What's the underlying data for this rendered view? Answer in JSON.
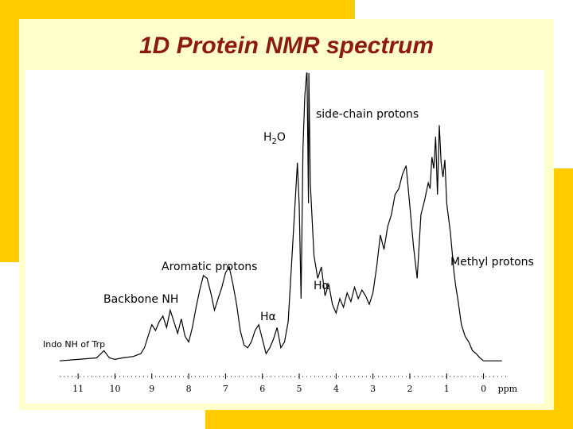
{
  "colors": {
    "background": "#ffffff",
    "accent_yellow": "#ffcc00",
    "slide_panel": "#ffffcc",
    "title": "#8b1a10",
    "spectrum": "#000000"
  },
  "slide": {
    "title": "1D Protein NMR spectrum"
  },
  "chart_data": {
    "type": "line",
    "title": "1D Protein NMR spectrum",
    "xlabel": "ppm",
    "ylabel": "",
    "x_reversed": true,
    "xlim": [
      11.5,
      -0.7
    ],
    "ylim": [
      0,
      100
    ],
    "x_ticks": [
      {
        "value": 11,
        "label": "11"
      },
      {
        "value": 10,
        "label": "10"
      },
      {
        "value": 9,
        "label": "9"
      },
      {
        "value": 8,
        "label": "8"
      },
      {
        "value": 7,
        "label": "7"
      },
      {
        "value": 6,
        "label": "6"
      },
      {
        "value": 5,
        "label": "5"
      },
      {
        "value": 4,
        "label": "4"
      },
      {
        "value": 3,
        "label": "3"
      },
      {
        "value": 2,
        "label": "2"
      },
      {
        "value": 1,
        "label": "1"
      },
      {
        "value": 0,
        "label": "0"
      }
    ],
    "series": [
      {
        "x": [
          11.5,
          11.0,
          10.5,
          10.3,
          10.15,
          10.0,
          9.8,
          9.5,
          9.3,
          9.2,
          9.1,
          9.0,
          8.9,
          8.8,
          8.7,
          8.6,
          8.5,
          8.4,
          8.3,
          8.2,
          8.1,
          8.0,
          7.9,
          7.8,
          7.7,
          7.6,
          7.5,
          7.4,
          7.3,
          7.2,
          7.1,
          7.0,
          6.9,
          6.8,
          6.7,
          6.6,
          6.5,
          6.4,
          6.3,
          6.2,
          6.1,
          6.0,
          5.9,
          5.8,
          5.7,
          5.6,
          5.5,
          5.4,
          5.3,
          5.2,
          5.1,
          5.05,
          5.0,
          4.95,
          4.9,
          4.85,
          4.8,
          4.79,
          4.75,
          4.74,
          4.7,
          4.6,
          4.5,
          4.4,
          4.3,
          4.2,
          4.1,
          4.0,
          3.9,
          3.8,
          3.7,
          3.6,
          3.5,
          3.4,
          3.3,
          3.2,
          3.1,
          3.0,
          2.9,
          2.8,
          2.7,
          2.6,
          2.5,
          2.4,
          2.3,
          2.2,
          2.1,
          2.0,
          1.9,
          1.8,
          1.7,
          1.6,
          1.5,
          1.45,
          1.4,
          1.35,
          1.3,
          1.25,
          1.2,
          1.15,
          1.1,
          1.05,
          1.0,
          0.95,
          0.9,
          0.85,
          0.8,
          0.75,
          0.7,
          0.6,
          0.5,
          0.4,
          0.3,
          0.2,
          0.1,
          0.0,
          -0.2,
          -0.5
        ],
        "y": [
          0.5,
          1,
          1.5,
          4,
          1.5,
          1,
          1.5,
          2,
          3,
          5,
          9,
          13,
          11,
          14,
          16,
          12,
          18,
          14,
          10,
          15,
          9,
          7,
          12,
          19,
          25,
          30,
          29,
          24,
          18,
          22,
          26,
          31,
          33,
          27,
          20,
          11,
          6,
          5,
          7,
          11,
          13,
          8,
          3,
          5,
          8,
          12,
          5,
          7,
          14,
          36,
          58,
          69,
          54,
          22,
          74,
          92,
          100,
          100,
          55,
          100,
          62,
          37,
          29,
          33,
          23,
          27,
          20,
          17,
          22,
          19,
          24,
          21,
          26,
          22,
          25,
          23,
          20,
          24,
          33,
          44,
          39,
          47,
          51,
          58,
          60,
          65,
          68,
          54,
          40,
          29,
          51,
          56,
          62,
          60,
          71,
          67,
          78,
          58,
          82,
          69,
          64,
          70,
          55,
          50,
          45,
          38,
          31,
          26,
          22,
          13,
          9,
          7,
          4,
          3,
          1.5,
          0.5,
          0.5,
          0.5
        ]
      }
    ],
    "annotations": [
      {
        "text": "side-chain protons"
      },
      {
        "text": "H2O"
      },
      {
        "text": "Aromatic protons"
      },
      {
        "text": "Hα",
        "position": "near 4.3 ppm"
      },
      {
        "text": "Methyl protons"
      },
      {
        "text": "Backbone NH"
      },
      {
        "text": "Hα",
        "position": "near 5.9 ppm"
      },
      {
        "text": "Indo NH of Trp"
      }
    ]
  }
}
